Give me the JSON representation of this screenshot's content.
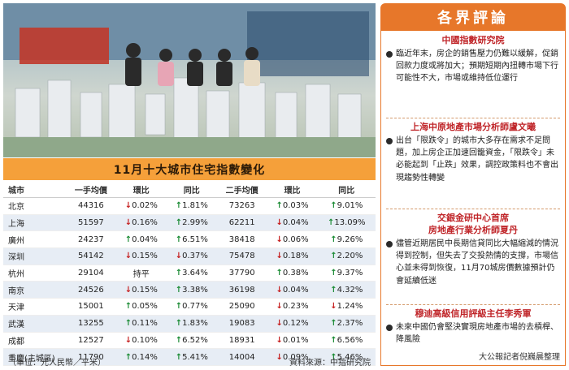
{
  "table": {
    "title": "11月十大城市住宅指數變化",
    "headers": [
      "城市",
      "一手均價",
      "環比",
      "同比",
      "二手均價",
      "環比",
      "同比"
    ],
    "rows": [
      {
        "city": "北京",
        "new_price": "44316",
        "new_mom": "0.02%",
        "new_mom_dir": "down",
        "new_yoy": "1.81%",
        "new_yoy_dir": "up",
        "sec_price": "73263",
        "sec_mom": "0.03%",
        "sec_mom_dir": "up",
        "sec_yoy": "9.01%",
        "sec_yoy_dir": "up"
      },
      {
        "city": "上海",
        "new_price": "51597",
        "new_mom": "0.16%",
        "new_mom_dir": "down",
        "new_yoy": "2.99%",
        "new_yoy_dir": "up",
        "sec_price": "62211",
        "sec_mom": "0.04%",
        "sec_mom_dir": "down",
        "sec_yoy": "13.09%",
        "sec_yoy_dir": "up"
      },
      {
        "city": "廣州",
        "new_price": "24237",
        "new_mom": "0.04%",
        "new_mom_dir": "up",
        "new_yoy": "6.51%",
        "new_yoy_dir": "up",
        "sec_price": "38418",
        "sec_mom": "0.06%",
        "sec_mom_dir": "down",
        "sec_yoy": "9.26%",
        "sec_yoy_dir": "up"
      },
      {
        "city": "深圳",
        "new_price": "54142",
        "new_mom": "0.15%",
        "new_mom_dir": "down",
        "new_yoy": "0.37%",
        "new_yoy_dir": "down",
        "sec_price": "75478",
        "sec_mom": "0.18%",
        "sec_mom_dir": "down",
        "sec_yoy": "2.20%",
        "sec_yoy_dir": "up"
      },
      {
        "city": "杭州",
        "new_price": "29104",
        "new_mom": "持平",
        "new_mom_dir": "flat",
        "new_yoy": "3.64%",
        "new_yoy_dir": "up",
        "sec_price": "37790",
        "sec_mom": "0.38%",
        "sec_mom_dir": "up",
        "sec_yoy": "9.37%",
        "sec_yoy_dir": "up"
      },
      {
        "city": "南京",
        "new_price": "24526",
        "new_mom": "0.15%",
        "new_mom_dir": "down",
        "new_yoy": "3.38%",
        "new_yoy_dir": "up",
        "sec_price": "36198",
        "sec_mom": "0.04%",
        "sec_mom_dir": "down",
        "sec_yoy": "4.32%",
        "sec_yoy_dir": "up"
      },
      {
        "city": "天津",
        "new_price": "15001",
        "new_mom": "0.05%",
        "new_mom_dir": "up",
        "new_yoy": "0.77%",
        "new_yoy_dir": "up",
        "sec_price": "25090",
        "sec_mom": "0.23%",
        "sec_mom_dir": "down",
        "sec_yoy": "1.24%",
        "sec_yoy_dir": "down"
      },
      {
        "city": "武漢",
        "new_price": "13255",
        "new_mom": "0.11%",
        "new_mom_dir": "up",
        "new_yoy": "1.83%",
        "new_yoy_dir": "up",
        "sec_price": "19083",
        "sec_mom": "0.12%",
        "sec_mom_dir": "down",
        "sec_yoy": "2.37%",
        "sec_yoy_dir": "up"
      },
      {
        "city": "成都",
        "new_price": "12527",
        "new_mom": "0.10%",
        "new_mom_dir": "down",
        "new_yoy": "6.52%",
        "new_yoy_dir": "up",
        "sec_price": "18931",
        "sec_mom": "0.01%",
        "sec_mom_dir": "down",
        "sec_yoy": "6.56%",
        "sec_yoy_dir": "up"
      },
      {
        "city": "重慶(主城區)",
        "new_price": "11790",
        "new_mom": "0.14%",
        "new_mom_dir": "up",
        "new_yoy": "5.41%",
        "new_yoy_dir": "up",
        "sec_price": "14004",
        "sec_mom": "0.09%",
        "sec_mom_dir": "down",
        "sec_yoy": "5.46%",
        "sec_yoy_dir": "up"
      }
    ],
    "unit_note": "（單位：元人民幣／平米）",
    "source": "資料來源：中指研究院"
  },
  "commentary": {
    "title": "各界評論",
    "sections": [
      {
        "heading": "中國指數研究院",
        "subheading": "",
        "text": "臨近年末，房企的銷售壓力仍難以緩解，促銷回款力度或將加大；預期短期內扭轉市場下行可能性不大，市場或維持低位運行"
      },
      {
        "heading": "上海中原地產市場分析師盧文曦",
        "subheading": "",
        "text": "出台「限跌令」的城市大多存在需求不足問題，加上房企正加速回籠資金，「限跌令」未必能起到「止跌」效果，調控政策料也不會出現趨勢性轉變"
      },
      {
        "heading": "交銀金研中心首席",
        "subheading": "房地產行業分析師夏丹",
        "text": "儘管近期居民中長期信貸同比大幅縮減的情況得到控制，但失去了交投熱情的支撐，市場信心並未得到恢復，11月70城房價數據預計仍會延續低迷"
      },
      {
        "heading": "穆迪高級信用評級主任李秀軍",
        "subheading": "",
        "text": "未來中國仍會堅決實現房地產市場的去槓桿、降風險"
      }
    ],
    "credit": "大公報記者倪巍晨整理"
  },
  "colors": {
    "up": "#1a8b34",
    "down": "#c51d1d",
    "accent": "#e7772a",
    "table_title": "#f5a03a"
  }
}
